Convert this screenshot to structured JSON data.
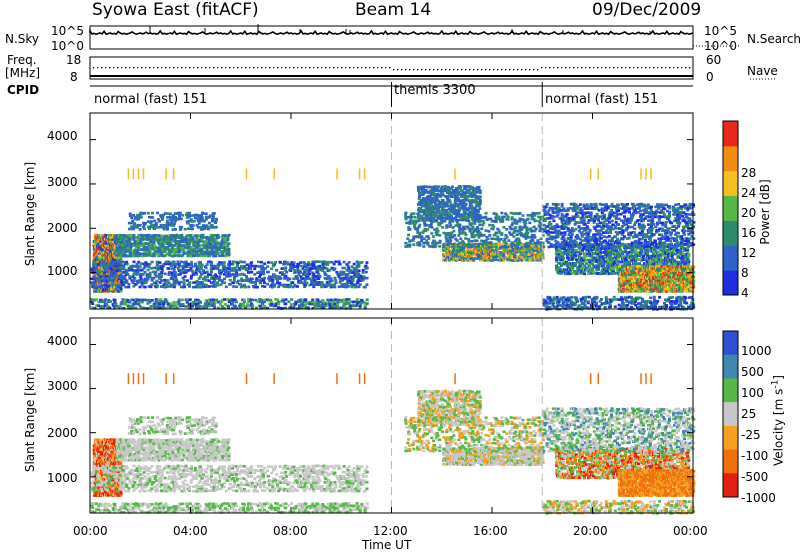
{
  "header": {
    "title": "Syowa East (fitACF)",
    "beam": "Beam 14",
    "date": "09/Dec/2009"
  },
  "strip": {
    "nsky_label": "N.Sky",
    "nsearch_label": "N.Search",
    "nsky_ticks": [
      "10^5",
      "10^0"
    ],
    "nsky_right_ticks": [
      "10^5",
      "10^0"
    ],
    "freq_label": "Freq.",
    "freq_unit": "[MHz]",
    "freq_ticks": [
      "18",
      "8"
    ],
    "nave_ticks": [
      "60",
      "0"
    ],
    "nave_label": "Nave",
    "cpid_label": "CPID"
  },
  "cpid_segments": [
    {
      "label": "normal (fast) 151",
      "start_h": 0,
      "end_h": 12
    },
    {
      "label": "themis 3300",
      "start_h": 12,
      "end_h": 18
    },
    {
      "label": "normal (fast) 151",
      "start_h": 18,
      "end_h": 24
    }
  ],
  "chart_data": [
    {
      "type": "heatmap",
      "name": "power",
      "ylabel": "Slant Range [km]",
      "xlabel": "Time UT",
      "x_ticks": [
        "00:00",
        "04:00",
        "08:00",
        "12:00",
        "16:00",
        "20:00",
        "00:00"
      ],
      "xlim_hours": [
        0,
        24
      ],
      "ylim_km": [
        180,
        4600
      ],
      "y_ticks": [
        1000,
        2000,
        3000,
        4000
      ],
      "colorbar_label": "Power [dB]",
      "colorbar_ticks": [
        "4",
        "8",
        "12",
        "16",
        "20",
        "24",
        "28"
      ],
      "colorbar_range": [
        0,
        30
      ],
      "colors": [
        "#1f2fe0",
        "#2f63c8",
        "#2e8c6e",
        "#55b848",
        "#f4c020",
        "#f28c14",
        "#ea2a18"
      ]
    },
    {
      "type": "heatmap",
      "name": "velocity",
      "ylabel": "Slant Range [km]",
      "xlabel": "Time UT",
      "x_ticks": [
        "00:00",
        "04:00",
        "08:00",
        "12:00",
        "16:00",
        "20:00",
        "00:00"
      ],
      "xlim_hours": [
        0,
        24
      ],
      "ylim_km": [
        180,
        4600
      ],
      "y_ticks": [
        1000,
        2000,
        3000,
        4000
      ],
      "colorbar_label": "Velocity [m s",
      "colorbar_label_sup": "-1",
      "colorbar_label_end": "]",
      "colorbar_ticks": [
        "1000",
        "500",
        "100",
        "25",
        "-25",
        "-100",
        "-500",
        "-1000"
      ],
      "colors": [
        "#2f4fd0",
        "#3f87b0",
        "#55b848",
        "#c8c8c8",
        "#f4a020",
        "#f07010",
        "#e02010"
      ]
    }
  ],
  "xlabel": "Time UT"
}
